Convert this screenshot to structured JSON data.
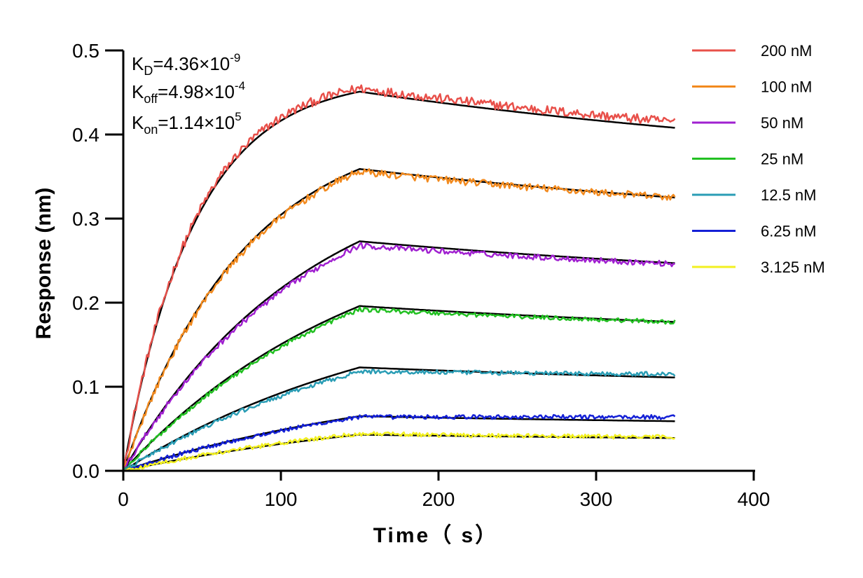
{
  "chart_data": {
    "type": "line",
    "xlabel": "Time（ s）",
    "ylabel": "Response (nm)",
    "xlim": [
      0,
      400
    ],
    "ylim": [
      0,
      0.5
    ],
    "x_ticks": [
      "0",
      "100",
      "200",
      "300",
      "400"
    ],
    "y_ticks": [
      "0.0",
      "0.1",
      "0.2",
      "0.3",
      "0.4",
      "0.5"
    ],
    "association_end_s": 150,
    "end_s": 350,
    "kinetics": {
      "kd": {
        "label": "K",
        "sub": "D",
        "value": "=4.36×10",
        "exp": "-9"
      },
      "koff": {
        "label": "K",
        "sub": "off",
        "value": "=4.98×10",
        "exp": "-4"
      },
      "kon": {
        "label": "K",
        "sub": "on",
        "value": "=1.14×10",
        "exp": "5"
      }
    },
    "series": [
      {
        "name": "200 nM",
        "color": "#e8504a",
        "peak": 0.455,
        "end": 0.415,
        "fit_peak": 0.451,
        "fit_end": 0.408
      },
      {
        "name": "100 nM",
        "color": "#f28a1e",
        "peak": 0.356,
        "end": 0.325,
        "fit_peak": 0.359,
        "fit_end": 0.325
      },
      {
        "name": "50 nM",
        "color": "#a020d0",
        "peak": 0.268,
        "end": 0.246,
        "fit_peak": 0.273,
        "fit_end": 0.247
      },
      {
        "name": "25 nM",
        "color": "#22c022",
        "peak": 0.192,
        "end": 0.177,
        "fit_peak": 0.196,
        "fit_end": 0.177
      },
      {
        "name": "12.5 nM",
        "color": "#2a9db5",
        "peak": 0.118,
        "end": 0.115,
        "fit_peak": 0.123,
        "fit_end": 0.111
      },
      {
        "name": "6.25 nM",
        "color": "#1420d6",
        "peak": 0.064,
        "end": 0.064,
        "fit_peak": 0.065,
        "fit_end": 0.059
      },
      {
        "name": "3.125 nM",
        "color": "#f2f020",
        "peak": 0.044,
        "end": 0.04,
        "fit_peak": 0.043,
        "fit_end": 0.039
      }
    ],
    "legend_position": "right",
    "grid": false
  }
}
